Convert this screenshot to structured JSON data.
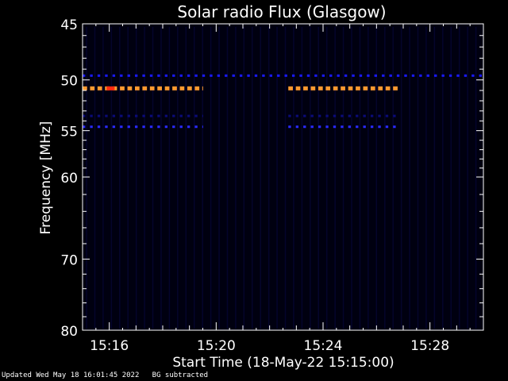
{
  "chart_data": {
    "type": "heatmap",
    "title": "Solar radio Flux (Glasgow)",
    "xlabel": "Start Time (18-May-22 15:15:00)",
    "ylabel": "Frequency [MHz]",
    "xlim_minutes": [
      15.0,
      30.0
    ],
    "ylim_mhz": [
      45,
      80
    ],
    "y_scale": "log",
    "x_ticks": [
      {
        "label": "15:16",
        "minutes": 16
      },
      {
        "label": "15:20",
        "minutes": 20
      },
      {
        "label": "15:24",
        "minutes": 24
      },
      {
        "label": "15:28",
        "minutes": 28
      }
    ],
    "y_major_ticks": [
      45,
      50,
      55,
      60,
      70,
      80
    ],
    "y_minor_ticks": [
      46,
      47,
      48,
      49,
      51,
      52,
      53,
      54,
      56,
      57,
      58,
      59,
      62,
      64,
      66,
      68,
      72,
      74,
      76,
      78
    ],
    "background_color": "#000010",
    "emission_bands": [
      {
        "freq_mhz": 50.8,
        "start_min": 15.0,
        "end_min": 19.5,
        "intensity": "high",
        "color": "#ff9a30"
      },
      {
        "freq_mhz": 50.8,
        "start_min": 22.7,
        "end_min": 26.9,
        "intensity": "high",
        "color": "#ff9a30"
      },
      {
        "freq_mhz": 49.6,
        "start_min": 15.0,
        "end_min": 30.0,
        "intensity": "low",
        "color": "#1a1aff"
      },
      {
        "freq_mhz": 54.6,
        "start_min": 15.0,
        "end_min": 19.5,
        "intensity": "low",
        "color": "#2a2aff"
      },
      {
        "freq_mhz": 54.6,
        "start_min": 22.7,
        "end_min": 26.9,
        "intensity": "low",
        "color": "#2a2aff"
      },
      {
        "freq_mhz": 53.5,
        "start_min": 15.0,
        "end_min": 19.5,
        "intensity": "very-low",
        "color": "#0b0b7a"
      },
      {
        "freq_mhz": 53.5,
        "start_min": 22.7,
        "end_min": 26.9,
        "intensity": "very-low",
        "color": "#0b0b7a"
      }
    ],
    "peak_color": "#ff2a10"
  },
  "footer": {
    "updated": "Updated Wed May 18 16:01:45 2022",
    "note": "BG subtracted"
  }
}
